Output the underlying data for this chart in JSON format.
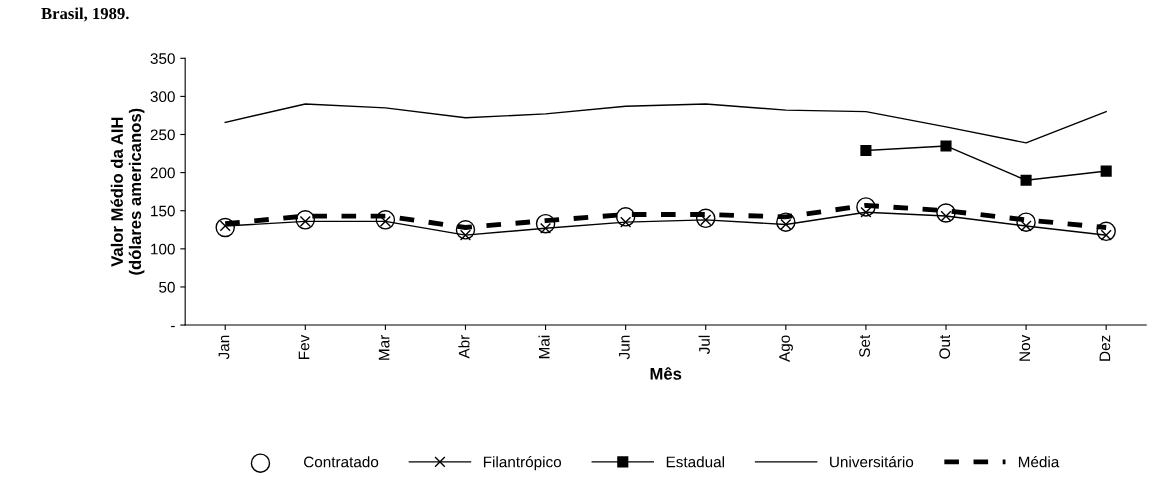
{
  "chart_data": {
    "type": "line",
    "title": "Brasil, 1989.",
    "xlabel": "Mês",
    "ylabel": "Valor Médio da AIH\n(dólares americanos)",
    "categories": [
      "Jan",
      "Fev",
      "Mar",
      "Abr",
      "Mai",
      "Jun",
      "Jul",
      "Ago",
      "Set",
      "Out",
      "Nov",
      "Dez"
    ],
    "series": [
      {
        "name": "Contratado",
        "type": "scatter",
        "color": "#000000",
        "marker": "circle",
        "values": [
          128,
          138,
          138,
          125,
          133,
          142,
          140,
          135,
          155,
          147,
          135,
          123
        ]
      },
      {
        "name": "Filantrópico",
        "color": "#000000",
        "marker": "cross",
        "line_style": "solid",
        "values": [
          130,
          136,
          136,
          118,
          127,
          135,
          138,
          132,
          148,
          143,
          130,
          118
        ]
      },
      {
        "name": "Estadual",
        "color": "#000000",
        "marker": "square",
        "line_style": "solid",
        "values": [
          null,
          null,
          null,
          null,
          null,
          null,
          null,
          null,
          229,
          235,
          190,
          202
        ]
      },
      {
        "name": "Universitário",
        "color": "#000000",
        "marker": "none",
        "line_style": "solid",
        "values": [
          266,
          290,
          285,
          272,
          277,
          287,
          290,
          282,
          280,
          260,
          239,
          280
        ]
      },
      {
        "name": "Média",
        "color": "#000000",
        "marker": "none",
        "line_style": "dashed",
        "values": [
          133,
          143,
          143,
          128,
          137,
          145,
          145,
          142,
          157,
          150,
          138,
          128
        ]
      }
    ],
    "ylim": [
      0,
      350
    ],
    "yticks": [
      {
        "value": 0,
        "label": "-"
      },
      50,
      100,
      150,
      200,
      250,
      300,
      350
    ],
    "grid": false,
    "legend": "bottom"
  }
}
